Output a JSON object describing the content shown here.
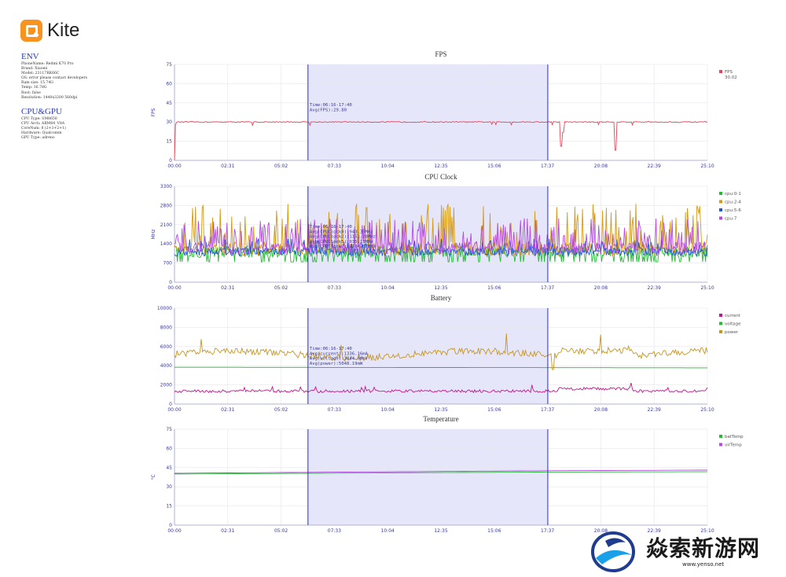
{
  "brand": {
    "name": "Kite"
  },
  "env": {
    "title": "ENV",
    "lines": [
      "PhoneName: Redmi K70 Pro",
      "Brand: Xiaomi",
      "Model: 23117RK66C",
      "OS: error please contact developers",
      "Ram size: 15.74G",
      "Temp: 16.78G",
      "Root: false",
      "Resolution: 1440x3200 560dpi"
    ]
  },
  "cpu_gpu": {
    "title": "CPU&GPU",
    "lines": [
      "CPU Type: SM8650",
      "CPU Arch: ARM64_V8A",
      "CoreNum: 8 (2+3+2+1)",
      "Hardware: Qualcomm",
      "GPU Type: adreno"
    ]
  },
  "x_ticks": [
    "00:00",
    "02:31",
    "05:02",
    "07:33",
    "10:04",
    "12:35",
    "15:06",
    "17:37",
    "20:08",
    "22:39",
    "25:10"
  ],
  "selection": {
    "start_frac": 0.2505,
    "end_frac": 0.7005
  },
  "colors": {
    "selection_fill": "#e6e6fa",
    "selection_line": "#2b2bbf",
    "grid": "#e6e6ee",
    "axis": "#9aa0c8"
  },
  "chart_data": [
    {
      "type": "line",
      "title": "FPS",
      "ylabel": "FPS",
      "ylim": [
        0,
        75
      ],
      "y_ticks": [
        "75",
        "60",
        "45",
        "30",
        "15",
        "0"
      ],
      "series": [
        {
          "name": "FPS",
          "color": "#e8455a"
        }
      ],
      "legend_extra": "30.02",
      "tooltip": [
        "Time:06:16-17:40",
        "Avg(FPS):29.80"
      ]
    },
    {
      "type": "line",
      "title": "CPU Clock",
      "ylabel": "MHz",
      "ylim": [
        0,
        3300
      ],
      "y_ticks": [
        "3300",
        "2800",
        "2100",
        "1400",
        "700",
        "0"
      ],
      "series": [
        {
          "name": "cpu:0-1",
          "color": "#22bb33"
        },
        {
          "name": "cpu:2-4",
          "color": "#d49a12"
        },
        {
          "name": "cpu:5-6",
          "color": "#2255dd"
        },
        {
          "name": "cpu:7",
          "color": "#b44be0"
        }
      ],
      "tooltip": [
        "Time:06:16-17:40",
        "Avg(CPUClock0):943.35MHz",
        "Avg(CPUClock2):1151.28MHz",
        "Avg(CPUClock5):935.13MHz",
        "Avg(CPUClock7):1284.67MHz"
      ]
    },
    {
      "type": "line",
      "title": "Battery",
      "ylabel": "",
      "ylim": [
        0,
        10000
      ],
      "y_ticks": [
        "10000",
        "8000",
        "6000",
        "4000",
        "2000",
        "0"
      ],
      "series": [
        {
          "name": "current",
          "color": "#c0168e"
        },
        {
          "name": "voltage",
          "color": "#22bb33"
        },
        {
          "name": "power",
          "color": "#c8961e"
        }
      ],
      "tooltip": [
        "Time:06:16-17:40",
        "Avg(current):1336.16mA",
        "Avg(voltage):3844.00mV",
        "Avg(power):5048.19mW"
      ]
    },
    {
      "type": "line",
      "title": "Temperature",
      "ylabel": "°C",
      "ylim": [
        0,
        75
      ],
      "y_ticks": [
        "75",
        "60",
        "45",
        "30",
        "15",
        "0"
      ],
      "series": [
        {
          "name": "batTemp",
          "color": "#22bb33"
        },
        {
          "name": "virTemp",
          "color": "#b44be0"
        }
      ],
      "tooltip": []
    }
  ],
  "watermark": {
    "text": "焱索新游网",
    "url": "www.yenso.net"
  }
}
